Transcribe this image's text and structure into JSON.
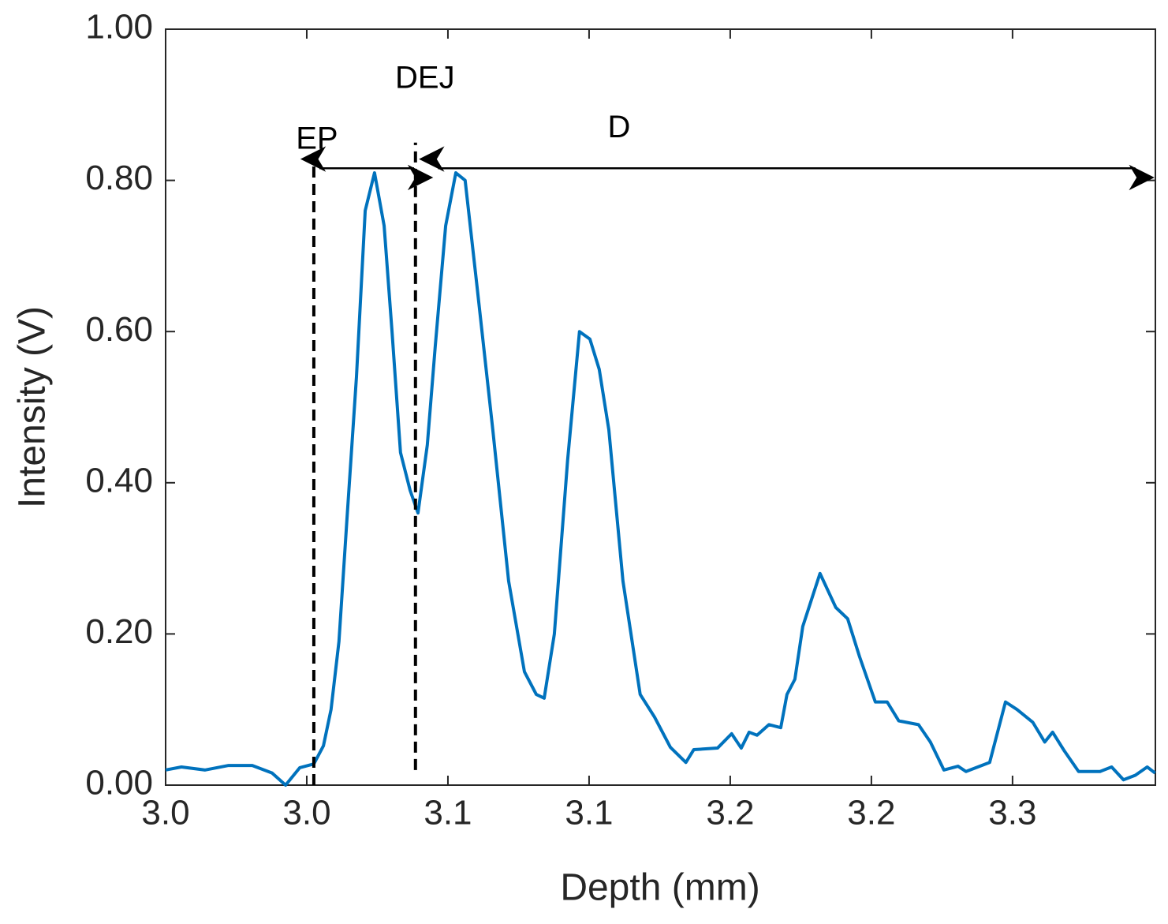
{
  "chart_data": {
    "type": "line",
    "xlabel": "Depth (mm)",
    "ylabel": "Intensity (V)",
    "xlim": [
      2.98,
      3.3306
    ],
    "ylim": [
      0,
      1
    ],
    "xticks": [
      {
        "value": 2.98,
        "label": "3.0"
      },
      {
        "value": 3.03,
        "label": "3.0"
      },
      {
        "value": 3.08,
        "label": "3.1"
      },
      {
        "value": 3.13,
        "label": "3.1"
      },
      {
        "value": 3.18,
        "label": "3.2"
      },
      {
        "value": 3.23,
        "label": "3.2"
      },
      {
        "value": 3.28,
        "label": "3.3"
      }
    ],
    "yticks": [
      {
        "value": 0,
        "label": "0.00"
      },
      {
        "value": 0.2,
        "label": "0.20"
      },
      {
        "value": 0.4,
        "label": "0.40"
      },
      {
        "value": 0.6,
        "label": "0.60"
      },
      {
        "value": 0.8,
        "label": "0.80"
      },
      {
        "value": 1,
        "label": "1.00"
      }
    ],
    "color": "#0072bd",
    "x": [
      2.98,
      2.9856,
      2.994,
      3.0023,
      3.0107,
      3.0177,
      3.0225,
      3.0275,
      3.0325,
      3.0359,
      3.0386,
      3.0414,
      3.0442,
      3.0476,
      3.0507,
      3.054,
      3.0574,
      3.0602,
      3.0632,
      3.0666,
      3.0694,
      3.0727,
      3.0755,
      3.0792,
      3.0828,
      3.0861,
      3.0903,
      3.0959,
      3.1015,
      3.1071,
      3.1113,
      3.1141,
      3.1177,
      3.1224,
      3.1266,
      3.1303,
      3.1336,
      3.137,
      3.142,
      3.1481,
      3.1532,
      3.1588,
      3.1643,
      3.1671,
      3.1755,
      3.1805,
      3.1839,
      3.1867,
      3.1895,
      3.1937,
      3.1979,
      3.2001,
      3.2029,
      3.2057,
      3.2118,
      3.2174,
      3.2216,
      3.2258,
      3.2314,
      3.2356,
      3.2397,
      3.2467,
      3.2509,
      3.2557,
      3.2607,
      3.2635,
      3.2719,
      3.2775,
      3.2816,
      3.2872,
      3.2914,
      3.2942,
      3.2984,
      3.3034,
      3.311,
      3.3151,
      3.3193,
      3.3235,
      3.3277,
      3.3305
    ],
    "values": [
      0.02,
      0.024,
      0.02,
      0.026,
      0.026,
      0.016,
      0,
      0.023,
      0.028,
      0.052,
      0.1,
      0.19,
      0.35,
      0.54,
      0.76,
      0.81,
      0.74,
      0.6,
      0.44,
      0.39,
      0.36,
      0.45,
      0.58,
      0.74,
      0.81,
      0.8,
      0.66,
      0.47,
      0.27,
      0.15,
      0.12,
      0.115,
      0.2,
      0.43,
      0.6,
      0.59,
      0.55,
      0.47,
      0.27,
      0.12,
      0.09,
      0.05,
      0.03,
      0.047,
      0.049,
      0.068,
      0.049,
      0.07,
      0.066,
      0.08,
      0.076,
      0.12,
      0.14,
      0.21,
      0.28,
      0.235,
      0.22,
      0.17,
      0.11,
      0.11,
      0.085,
      0.08,
      0.057,
      0.02,
      0.025,
      0.018,
      0.03,
      0.11,
      0.1,
      0.083,
      0.057,
      0.07,
      0.045,
      0.018,
      0.018,
      0.024,
      0.007,
      0.013,
      0.024,
      0.016
    ],
    "vlines": [
      {
        "label": "EP",
        "x": 3.0325,
        "ymin": 0,
        "ymax": 0.83
      },
      {
        "label": "DEJ",
        "x": 3.0685,
        "ymin": 0.02,
        "ymax": 0.85
      }
    ],
    "arrows": [
      {
        "x0": 3.0345,
        "x1": 3.068,
        "y": 0.816
      },
      {
        "label": "D",
        "x0": 3.0765,
        "x1": 3.3235,
        "y": 0.816
      }
    ]
  }
}
